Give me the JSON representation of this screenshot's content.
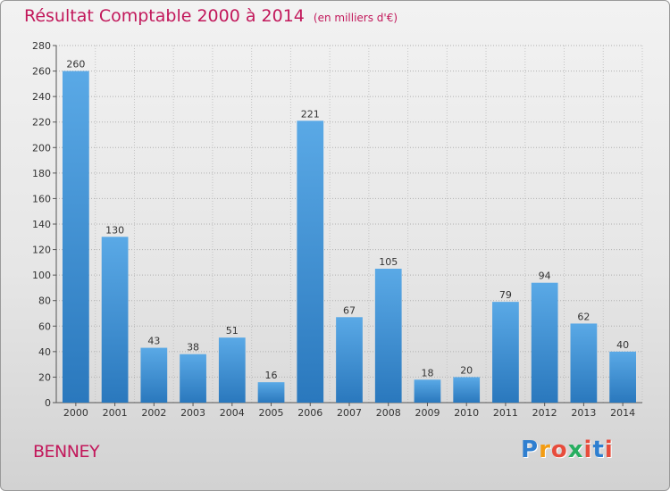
{
  "chart_data": {
    "type": "bar",
    "title": "Résultat Comptable 2000 à 2014",
    "subtitle": "(en milliers d'€)",
    "categories": [
      "2000",
      "2001",
      "2002",
      "2003",
      "2004",
      "2005",
      "2006",
      "2007",
      "2008",
      "2009",
      "2010",
      "2011",
      "2012",
      "2013",
      "2014"
    ],
    "values": [
      260,
      130,
      43,
      38,
      51,
      16,
      221,
      67,
      105,
      18,
      20,
      79,
      94,
      62,
      40
    ],
    "ylim": [
      0,
      280
    ],
    "yticks": [
      0,
      20,
      40,
      60,
      80,
      100,
      120,
      140,
      160,
      180,
      200,
      220,
      240,
      260,
      280
    ],
    "xlabel": "",
    "ylabel": "",
    "grid": true,
    "bar_color": "#3a8fd6"
  },
  "commune": "BENNEY",
  "logo": {
    "letters": [
      "P",
      "r",
      "o",
      "x",
      "i",
      "t",
      "i"
    ],
    "colors": [
      "#2f7fd0",
      "#f39c12",
      "#e74c3c",
      "#27ae60",
      "#e74c3c",
      "#2f7fd0",
      "#e74c3c"
    ]
  }
}
